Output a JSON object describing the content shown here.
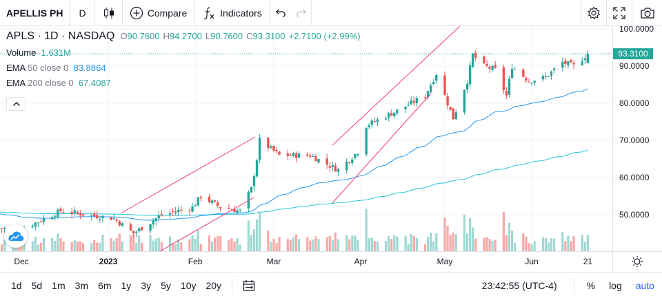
{
  "toolbar": {
    "symbol": "APELLIS PH",
    "interval": "D",
    "compare_label": "Compare",
    "indicators_label": "Indicators"
  },
  "legend": {
    "title": "APLS · 1D · NASDAQ",
    "open_label": "O",
    "open": "90.7600",
    "high_label": "H",
    "high": "94.2700",
    "low_label": "L",
    "low": "90.7600",
    "close_label": "C",
    "close": "93.3100",
    "change": "+2.7100 (+2.99%)",
    "volume_label": "Volume",
    "volume": "1.631M",
    "ema50_label": "EMA",
    "ema50_params": "50 close 0",
    "ema50": "83.8864",
    "ema200_label": "EMA",
    "ema200_params": "200 close 0",
    "ema200": "67.4087"
  },
  "price_axis": {
    "ticks": [
      "100.0000",
      "90.0000",
      "80.0000",
      "70.0000",
      "60.0000",
      "50.0000"
    ],
    "last_price": "93.3100"
  },
  "time_axis": {
    "labels": [
      {
        "text": "Dec",
        "bold": false
      },
      {
        "text": "2023",
        "bold": true
      },
      {
        "text": "Feb",
        "bold": false
      },
      {
        "text": "Mar",
        "bold": false
      },
      {
        "text": "Apr",
        "bold": false
      },
      {
        "text": "May",
        "bold": false
      },
      {
        "text": "Jun",
        "bold": false
      },
      {
        "text": "21",
        "bold": false
      }
    ]
  },
  "bottombar": {
    "ranges": [
      "1d",
      "5d",
      "1m",
      "3m",
      "6m",
      "1y",
      "3y",
      "5y",
      "10y",
      "20y"
    ],
    "time": "23:42:55 (UTC-4)",
    "percent_label": "%",
    "log_label": "log",
    "auto_label": "auto"
  },
  "colors": {
    "up": "#26a69a",
    "down": "#ef5350",
    "ema50": "#2196f3",
    "ema200": "#26c6da",
    "trendline": "#f23676",
    "auto": "#2962ff"
  },
  "chart_data": {
    "type": "candlestick",
    "title": "APLS · 1D · NASDAQ",
    "ylim": [
      40,
      102
    ],
    "anchors": [
      [
        "2022-12-01",
        46
      ],
      [
        "2022-12-15",
        51
      ],
      [
        "2023-01-03",
        49
      ],
      [
        "2023-01-10",
        45
      ],
      [
        "2023-01-20",
        50
      ],
      [
        "2023-01-31",
        52
      ],
      [
        "2023-02-03",
        55
      ],
      [
        "2023-02-10",
        52
      ],
      [
        "2023-02-17",
        51
      ],
      [
        "2023-02-21",
        57
      ],
      [
        "2023-02-23",
        65
      ],
      [
        "2023-02-24",
        70
      ],
      [
        "2023-03-03",
        66
      ],
      [
        "2023-03-14",
        66
      ],
      [
        "2023-03-24",
        62
      ],
      [
        "2023-03-31",
        67
      ],
      [
        "2023-04-03",
        74
      ],
      [
        "2023-04-14",
        78
      ],
      [
        "2023-04-24",
        82
      ],
      [
        "2023-04-28",
        88
      ],
      [
        "2023-05-02",
        80
      ],
      [
        "2023-05-04",
        76
      ],
      [
        "2023-05-09",
        86
      ],
      [
        "2023-05-11",
        93
      ],
      [
        "2023-05-15",
        90
      ],
      [
        "2023-05-19",
        89
      ],
      [
        "2023-05-23",
        82
      ],
      [
        "2023-05-25",
        90
      ],
      [
        "2023-05-31",
        86
      ],
      [
        "2023-06-06",
        87
      ],
      [
        "2023-06-12",
        91
      ],
      [
        "2023-06-16",
        90
      ],
      [
        "2023-06-21",
        93.31
      ]
    ],
    "last": {
      "open": 90.76,
      "high": 94.27,
      "low": 90.76,
      "close": 93.31
    },
    "ema50_end": 83.8864,
    "ema200_end": 67.4087,
    "volume_last": "1.631M"
  }
}
